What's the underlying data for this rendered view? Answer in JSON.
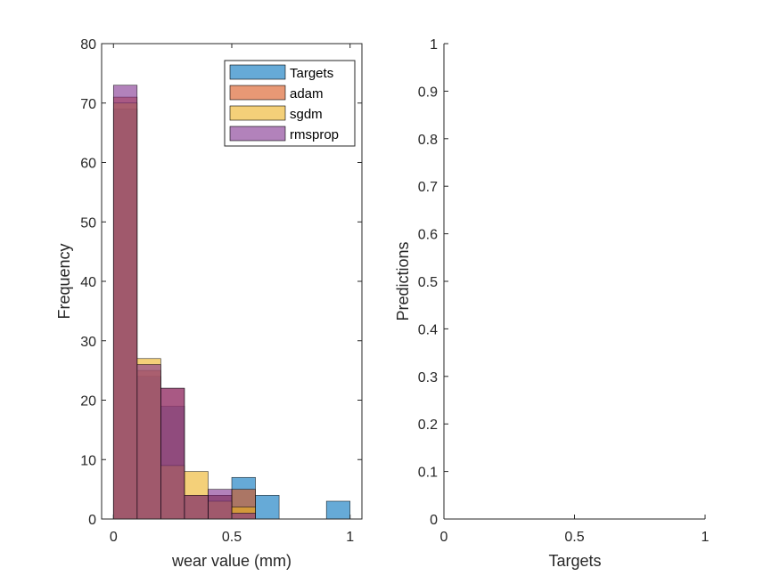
{
  "chart_data": [
    {
      "type": "bar",
      "subtype": "histogram",
      "xlabel": "wear value (mm)",
      "ylabel": "Frequency",
      "xlim": [
        -0.05,
        1.05
      ],
      "ylim": [
        0,
        80
      ],
      "xticks": [
        "0",
        "0.5",
        "1"
      ],
      "xtick_values": [
        0,
        0.5,
        1
      ],
      "yticks": [
        "0",
        "10",
        "20",
        "30",
        "40",
        "50",
        "60",
        "70",
        "80"
      ],
      "ytick_values": [
        0,
        10,
        20,
        30,
        40,
        50,
        60,
        70,
        80
      ],
      "bin_width": 0.1,
      "bin_starts": [
        0,
        0.1,
        0.2,
        0.3,
        0.4,
        0.5,
        0.6,
        0.7,
        0.8,
        0.9
      ],
      "bar_opacity": 0.6,
      "legend_position": "top-right",
      "series": [
        {
          "name": "Targets",
          "color": "#0072BD",
          "values": [
            69,
            24,
            19,
            4,
            4,
            7,
            4,
            0,
            0,
            3
          ]
        },
        {
          "name": "adam",
          "color": "#D95319",
          "values": [
            71,
            25,
            22,
            4,
            4,
            5,
            0,
            0,
            0,
            0
          ]
        },
        {
          "name": "sgdm",
          "color": "#EDB120",
          "values": [
            70,
            27,
            9,
            8,
            3,
            2,
            0,
            0,
            0,
            0
          ]
        },
        {
          "name": "rmsprop",
          "color": "#7E2F8E",
          "values": [
            73,
            26,
            22,
            4,
            5,
            1,
            0,
            0,
            0,
            0
          ]
        }
      ]
    },
    {
      "type": "scatter",
      "xlabel": "Targets",
      "ylabel": "Predictions",
      "xlim": [
        0,
        1
      ],
      "ylim": [
        0,
        1
      ],
      "xticks": [
        "0",
        "0.5",
        "1"
      ],
      "xtick_values": [
        0,
        0.5,
        1
      ],
      "yticks": [
        "0",
        "0.1",
        "0.2",
        "0.3",
        "0.4",
        "0.5",
        "0.6",
        "0.7",
        "0.8",
        "0.9",
        "1"
      ],
      "ytick_values": [
        0,
        0.1,
        0.2,
        0.3,
        0.4,
        0.5,
        0.6,
        0.7,
        0.8,
        0.9,
        1
      ],
      "series": []
    }
  ]
}
